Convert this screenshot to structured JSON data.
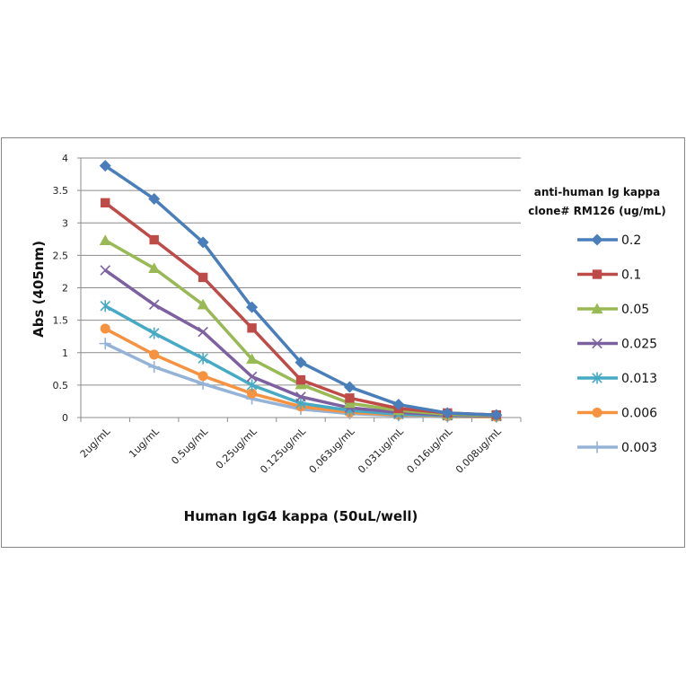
{
  "chart_data": {
    "type": "line",
    "title": "",
    "xlabel": "Human IgG4 kappa (50uL/well)",
    "ylabel": "Abs (405nm)",
    "categories": [
      "2ug/mL",
      "1ug/mL",
      "0.5ug/mL",
      "0.25ug/mL",
      "0.125ug/mL",
      "0.063ug/mL",
      "0.031ug/mL",
      "0.016ug/mL",
      "0.008ug/mL"
    ],
    "ylim": [
      0,
      4
    ],
    "yticks": [
      "0",
      "0.5",
      "1",
      "1.5",
      "2",
      "2.5",
      "3",
      "3.5",
      "4"
    ],
    "grid": "horizontal",
    "legend": {
      "placement": "right",
      "title_line1": "anti-human Ig kappa",
      "title_line2": "clone# RM126 (ug/mL)"
    },
    "series": [
      {
        "name": "0.2",
        "color": "#4A7EBB",
        "marker": "diamond",
        "values": [
          3.88,
          3.37,
          2.7,
          1.7,
          0.85,
          0.47,
          0.2,
          0.07,
          0.04
        ]
      },
      {
        "name": "0.1",
        "color": "#BE4B48",
        "marker": "square",
        "values": [
          3.31,
          2.74,
          2.16,
          1.38,
          0.58,
          0.3,
          0.14,
          0.07,
          0.04
        ]
      },
      {
        "name": "0.05",
        "color": "#98B954",
        "marker": "triangle",
        "values": [
          2.73,
          2.3,
          1.74,
          0.9,
          0.51,
          0.22,
          0.11,
          0.05,
          0.03
        ]
      },
      {
        "name": "0.025",
        "color": "#7D60A0",
        "marker": "x",
        "values": [
          2.27,
          1.74,
          1.32,
          0.63,
          0.32,
          0.15,
          0.08,
          0.04,
          0.02
        ]
      },
      {
        "name": "0.013",
        "color": "#46AAC5",
        "marker": "star",
        "values": [
          1.72,
          1.3,
          0.91,
          0.5,
          0.22,
          0.11,
          0.05,
          0.03,
          0.02
        ]
      },
      {
        "name": "0.006",
        "color": "#F69240",
        "marker": "circle",
        "values": [
          1.37,
          0.97,
          0.64,
          0.37,
          0.17,
          0.08,
          0.04,
          0.02,
          0.01
        ]
      },
      {
        "name": "0.003",
        "color": "#95B3D7",
        "marker": "plus",
        "values": [
          1.14,
          0.78,
          0.52,
          0.29,
          0.13,
          0.06,
          0.03,
          0.01,
          0.01
        ]
      }
    ]
  }
}
